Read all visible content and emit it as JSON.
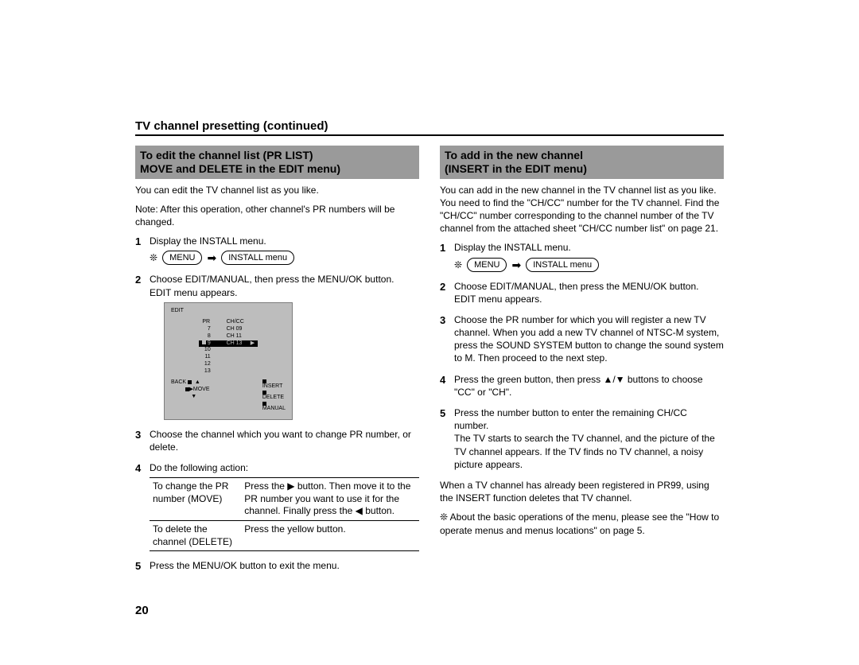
{
  "page": {
    "heading": "TV channel presetting (continued)",
    "number": "20"
  },
  "left": {
    "title_l1": "To edit the channel list (PR LIST)",
    "title_l2": "MOVE and DELETE in the EDIT menu)",
    "intro1": "You can edit the TV channel list as you like.",
    "intro2": "Note: After this operation, other channel's PR numbers will be changed.",
    "steps": {
      "s1": "Display the INSTALL menu.",
      "s2a": "Choose EDIT/MANUAL, then press the MENU/OK button.",
      "s2b": "EDIT menu appears.",
      "s3": "Choose the channel which you want to change PR number, or delete.",
      "s4": "Do the following action:",
      "s5": "Press the MENU/OK button to exit the menu."
    },
    "menuseq": {
      "star": "❊",
      "menu": "MENU",
      "arrow": "➡",
      "install": "INSTALL menu"
    },
    "osd": {
      "title": "EDIT",
      "hdr_pr": "PR",
      "hdr_ch": "CH/CC",
      "rows": [
        {
          "pr": "7",
          "ch": "CH 09"
        },
        {
          "pr": "8",
          "ch": "CH 11"
        },
        {
          "pr": "9",
          "ch": "CH 13",
          "sel": true
        },
        {
          "pr": "10",
          "ch": ""
        },
        {
          "pr": "11",
          "ch": ""
        },
        {
          "pr": "12",
          "ch": ""
        },
        {
          "pr": "13",
          "ch": ""
        }
      ],
      "back": "BACK",
      "move": "MOVE",
      "insert": "INSERT",
      "delete": "DELETE",
      "manual": "MANUAL"
    },
    "actions": {
      "r1c1": "To change the PR number (MOVE)",
      "r1c2": "Press the ▶ button. Then move it to the PR number you want to use it for the channel. Finally press the ◀ button.",
      "r2c1": "To delete the channel (DELETE)",
      "r2c2": "Press the yellow button."
    }
  },
  "right": {
    "title_l1": "To add in the new channel",
    "title_l2": "(INSERT in the EDIT menu)",
    "intro": "You can add in the new channel in the TV channel list as you like. You need to find the \"CH/CC\" number for the TV channel. Find the \"CH/CC\" number corresponding to the channel number of the TV channel from the attached sheet \"CH/CC number list\" on page 21.",
    "steps": {
      "s1": "Display the INSTALL menu.",
      "s2a": "Choose EDIT/MANUAL, then press the MENU/OK button.",
      "s2b": "EDIT menu appears.",
      "s3": "Choose the PR number for which you will register a new TV channel. When you add a new TV channel of NTSC-M system, press the SOUND SYSTEM button to change the sound system to M. Then proceed to the next step.",
      "s4": "Press the green button, then press ▲/▼ buttons to choose \"CC\" or \"CH\".",
      "s5a": "Press the number button to enter the remaining CH/CC number.",
      "s5b": "The TV starts to search the TV channel, and the picture of the TV channel appears. If the TV finds no TV channel, a noisy picture appears."
    },
    "menuseq": {
      "star": "❊",
      "menu": "MENU",
      "arrow": "➡",
      "install": "INSTALL menu"
    },
    "after": "When a TV channel has already been registered in PR99, using the INSERT function deletes that TV channel.",
    "footnote": "About the basic operations of the menu, please see the \"How to operate menus and menus locations\" on page 5.",
    "footstar": "❊"
  }
}
